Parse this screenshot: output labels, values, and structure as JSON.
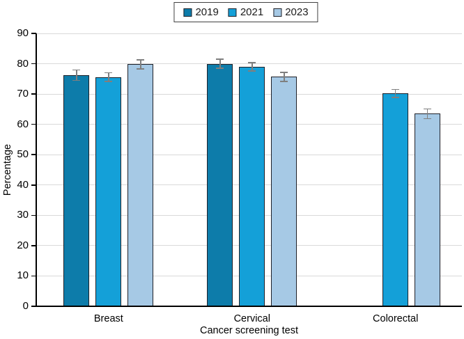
{
  "chart_data": {
    "type": "bar",
    "title": "",
    "categories": [
      "Breast",
      "Cervical",
      "Colorectal"
    ],
    "series": [
      {
        "name": "2019",
        "color": "#0d7caa",
        "values": [
          76.2,
          80.0,
          null
        ],
        "errors": [
          1.7,
          1.5,
          null
        ]
      },
      {
        "name": "2021",
        "color": "#14a0d8",
        "values": [
          75.6,
          79.0,
          70.2
        ],
        "errors": [
          1.4,
          1.4,
          1.3
        ]
      },
      {
        "name": "2023",
        "color": "#a6c9e5",
        "values": [
          79.8,
          75.7,
          63.5
        ],
        "errors": [
          1.5,
          1.5,
          1.6
        ]
      }
    ],
    "xlabel": "Cancer screening test",
    "ylabel": "Percentage",
    "ylim": [
      0,
      90
    ],
    "yticks": [
      0,
      10,
      20,
      30,
      40,
      50,
      60,
      70,
      80,
      90
    ],
    "grid": true,
    "legend_position": "top-center",
    "error_bars": true
  },
  "colors": {
    "grid": "#d9d9d9",
    "axis": "#000000",
    "bar_border": "#1e2028",
    "error": "#7f7f7f",
    "legend_border": "#404040",
    "text": "#000000"
  }
}
